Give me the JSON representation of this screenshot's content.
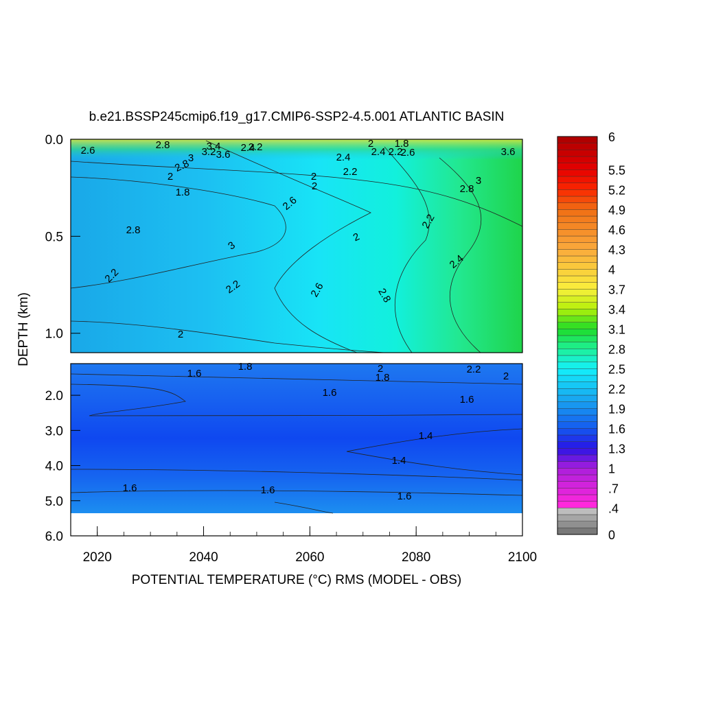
{
  "chart_data": {
    "type": "heatmap",
    "title": "b.e21.BSSP245cmip6.f19_g17.CMIP6-SSP2-4.5.001 ATLANTIC BASIN",
    "xlabel": "POTENTIAL TEMPERATURE (°C) RMS (MODEL - OBS)",
    "ylabel": "DEPTH (km)",
    "xlim": [
      2015,
      2100
    ],
    "x_ticks": [
      "2020",
      "2040",
      "2060",
      "2080",
      "2100"
    ],
    "panels": [
      {
        "name": "upper",
        "ylim": [
          0.0,
          1.1
        ],
        "y_ticks": [
          "0.0",
          "0.5",
          "1.0"
        ],
        "contour_labels": [
          "2.6",
          "2.8",
          "3",
          "3.2",
          "3.4",
          "3.6",
          "2.4",
          "2.2",
          "2",
          "1.8",
          "2.4",
          "2.2",
          "2.6",
          "2.8",
          "2",
          "1.8",
          "2",
          "2",
          "2.2",
          "2.4",
          "2.6",
          "2.8",
          "3",
          "2.2",
          "2",
          "2.2",
          "2.4",
          "2.6",
          "2.8",
          "3",
          "2.8",
          "2",
          "2.2",
          "3.6"
        ]
      },
      {
        "name": "deep",
        "ylim": [
          1.1,
          6.0
        ],
        "y_ticks": [
          "2.0",
          "3.0",
          "4.0",
          "5.0",
          "6.0"
        ],
        "contour_labels": [
          "1.6",
          "1.8",
          "2",
          "1.8",
          "2.2",
          "2",
          "1.6",
          "1.6",
          "1.4",
          "1.4",
          "1.6",
          "1.6",
          "1.6"
        ]
      }
    ],
    "colorbar": {
      "min": 0,
      "max": 6,
      "labels": [
        "6",
        "5.5",
        "5.2",
        "4.9",
        "4.6",
        "4.3",
        "4",
        "3.7",
        "3.4",
        "3.1",
        "2.8",
        "2.5",
        "2.2",
        "1.9",
        "1.6",
        "1.3",
        "1",
        ".7",
        ".4",
        "0"
      ]
    }
  }
}
